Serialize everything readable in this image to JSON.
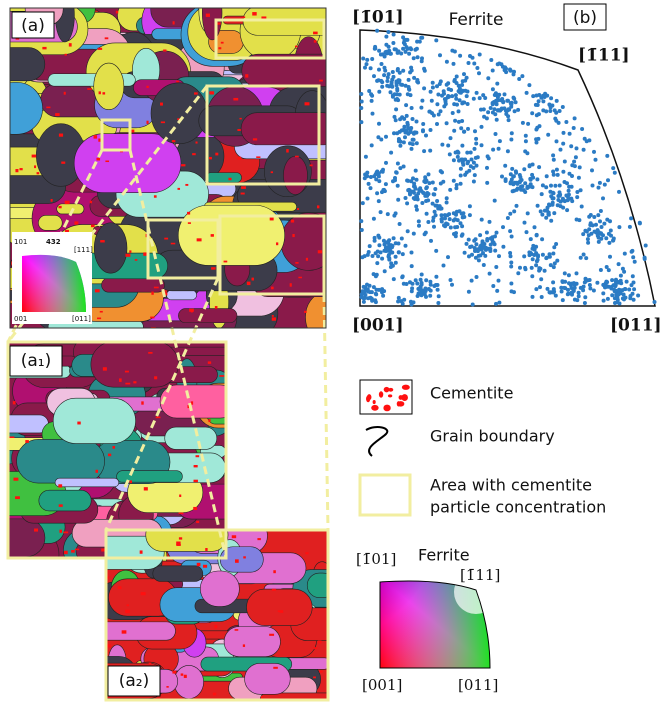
{
  "panel_a": {
    "label": "(a)",
    "key": {
      "top_left": "101",
      "center": "432",
      "top_right": "[111]",
      "bottom_left": "001",
      "bottom_right": "[011]"
    }
  },
  "panel_a1": {
    "label": "(a₁)"
  },
  "panel_a2": {
    "label": "(a₂)"
  },
  "panel_b": {
    "label": "(b)",
    "title": "Ferrite",
    "corners": {
      "top_left": "[1̄01]",
      "top_right": "[1̄11]",
      "bottom_left": "[001]",
      "bottom_right": "[011]"
    }
  },
  "legend": {
    "cementite": "Cementite",
    "grain_boundary": "Grain boundary",
    "area": [
      "Area with cementite",
      "particle concentration"
    ]
  },
  "color_key": {
    "title": "Ferrite",
    "top_left": "[1̄01]",
    "top_right": "[1̄11]",
    "bottom_left": "[001]",
    "bottom_right": "[011]"
  }
}
